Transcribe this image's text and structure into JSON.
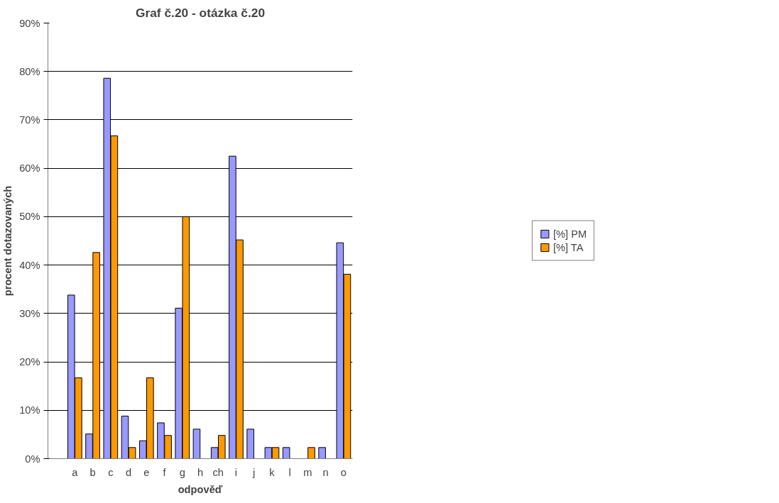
{
  "chart_data": {
    "type": "bar",
    "title": "Graf č.20 - otázka č.20",
    "xlabel": "odpověď",
    "ylabel": "procent dotazovaných",
    "categories": [
      null,
      "a",
      "b",
      "c",
      "d",
      "e",
      "f",
      "g",
      "h",
      "ch",
      "i",
      "j",
      "k",
      "l",
      "m",
      "n",
      "o"
    ],
    "series": [
      {
        "name": "[%] PM",
        "color": "#9999ff",
        "values": [
          null,
          33.8,
          5.1,
          78.6,
          8.8,
          3.7,
          7.4,
          31.1,
          6.1,
          2.3,
          62.5,
          6.1,
          2.3,
          2.3,
          null,
          2.3,
          44.6
        ]
      },
      {
        "name": "[%] TA",
        "color": "#ff9900",
        "values": [
          null,
          16.7,
          42.6,
          66.7,
          2.3,
          16.7,
          4.8,
          50.0,
          null,
          4.8,
          45.2,
          null,
          2.3,
          null,
          2.3,
          null,
          38.1
        ]
      }
    ],
    "ylim": [
      0,
      90
    ],
    "yticks": [
      {
        "value": 0,
        "label": "0%"
      },
      {
        "value": 10,
        "label": "10%"
      },
      {
        "value": 20,
        "label": "20%"
      },
      {
        "value": 30,
        "label": "30%"
      },
      {
        "value": 40,
        "label": "40%"
      },
      {
        "value": 50,
        "label": "50%"
      },
      {
        "value": 60,
        "label": "60%"
      },
      {
        "value": 70,
        "label": "70%"
      },
      {
        "value": 80,
        "label": "80%"
      },
      {
        "value": 90,
        "label": "90%"
      }
    ],
    "grid": "y",
    "legend": "right"
  }
}
